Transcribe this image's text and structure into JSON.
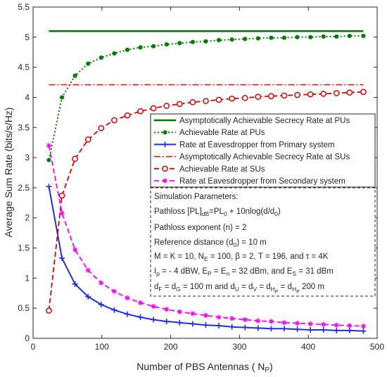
{
  "chart_data": {
    "type": "line",
    "xlabel": "Number of PBS Antennas ( N",
    "xlabel_sub": "P",
    "xlabel_end": ")",
    "ylabel": "Average Sum Rate (bits/s/Hz)",
    "xlim": [
      0,
      500
    ],
    "ylim": [
      0,
      5.5
    ],
    "xticks": [
      0,
      100,
      200,
      300,
      400,
      500
    ],
    "yticks": [
      0,
      0.5,
      1,
      1.5,
      2,
      2.5,
      3,
      3.5,
      4,
      4.5,
      5,
      5.5
    ],
    "x": [
      23,
      42,
      61,
      80,
      99,
      118,
      137,
      156,
      175,
      194,
      213,
      232,
      251,
      270,
      289,
      308,
      327,
      346,
      365,
      384,
      403,
      422,
      441,
      460,
      480
    ],
    "legend_position": "right",
    "series": [
      {
        "name": "Asymptotically Achievable Secrecy Rate at PUs",
        "color": "#007500",
        "dash": "solid",
        "marker": "none",
        "width": 2.5,
        "values": [
          5.1,
          5.1,
          5.1,
          5.1,
          5.1,
          5.1,
          5.1,
          5.1,
          5.1,
          5.1,
          5.1,
          5.1,
          5.1,
          5.1,
          5.1,
          5.1,
          5.1,
          5.1,
          5.1,
          5.1,
          5.1,
          5.1,
          5.1,
          5.1,
          5.1
        ]
      },
      {
        "name": "Achievable Rate at PUs",
        "color": "#008000",
        "dash": "dotted",
        "marker": "dot",
        "width": 2,
        "values": [
          2.96,
          4.0,
          4.36,
          4.56,
          4.66,
          4.73,
          4.79,
          4.83,
          4.85,
          4.88,
          4.9,
          4.92,
          4.93,
          4.95,
          4.96,
          4.97,
          4.98,
          4.99,
          4.99,
          5.0,
          5.0,
          5.01,
          5.01,
          5.02,
          5.02
        ]
      },
      {
        "name": "Rate at Eavesdropper from Primary system",
        "color": "#1b2ff0",
        "dash": "solid",
        "marker": "plus",
        "width": 2,
        "values": [
          2.52,
          1.33,
          0.9,
          0.69,
          0.56,
          0.47,
          0.4,
          0.35,
          0.31,
          0.28,
          0.26,
          0.24,
          0.22,
          0.21,
          0.19,
          0.18,
          0.17,
          0.16,
          0.16,
          0.15,
          0.14,
          0.14,
          0.13,
          0.13,
          0.12
        ]
      },
      {
        "name": "Asymptotically Achievable Secrecy Rate at SUs",
        "color": "#ff0000",
        "dash": "dashdot",
        "marker": "none",
        "width": 1.5,
        "values": [
          4.21,
          4.21,
          4.21,
          4.21,
          4.21,
          4.21,
          4.21,
          4.21,
          4.21,
          4.21,
          4.21,
          4.21,
          4.21,
          4.21,
          4.21,
          4.21,
          4.21,
          4.21,
          4.21,
          4.21,
          4.21,
          4.21,
          4.21,
          4.21,
          4.21
        ]
      },
      {
        "name": "Achievable Rate at SUs",
        "color": "#e30000",
        "dash": "dashed",
        "marker": "circle",
        "width": 1.8,
        "values": [
          0.46,
          2.37,
          2.98,
          3.3,
          3.49,
          3.62,
          3.7,
          3.77,
          3.82,
          3.86,
          3.89,
          3.92,
          3.94,
          3.96,
          3.98,
          3.99,
          4.01,
          4.02,
          4.03,
          4.04,
          4.05,
          4.06,
          4.07,
          4.08,
          4.09
        ]
      },
      {
        "name": "Rate at Eavesdropper from Secondary system",
        "color": "#ff00ff",
        "dash": "dashed",
        "marker": "star",
        "width": 1.8,
        "values": [
          3.2,
          2.08,
          1.47,
          1.13,
          0.92,
          0.78,
          0.67,
          0.59,
          0.53,
          0.48,
          0.44,
          0.41,
          0.38,
          0.35,
          0.33,
          0.31,
          0.29,
          0.28,
          0.26,
          0.25,
          0.24,
          0.23,
          0.22,
          0.21,
          0.2
        ]
      }
    ],
    "annotation_title": "Simulation Parameters:",
    "annotation_lines": [
      [
        {
          "t": "Pathloss [PL]"
        },
        {
          "t": "dB",
          "sub": true
        },
        {
          "t": "=PL"
        },
        {
          "t": "0",
          "sub": true
        },
        {
          "t": " + 10nlog(d/d"
        },
        {
          "t": "0",
          "sub": true
        },
        {
          "t": ")"
        }
      ],
      [
        {
          "t": "Pathloss exponent (n) = 2"
        }
      ],
      [
        {
          "t": "Reference distance (d"
        },
        {
          "t": "0",
          "sub": true
        },
        {
          "t": ") = 10 m"
        }
      ],
      [
        {
          "t": "M = K = 10,  N"
        },
        {
          "t": "E",
          "sub": true
        },
        {
          "t": " = 100, β = 2,  T = 196, and τ = 4K"
        }
      ],
      [
        {
          "t": "I"
        },
        {
          "t": "p",
          "sub": true
        },
        {
          "t": " = - 4 dBW,  E"
        },
        {
          "t": "P",
          "sub": true
        },
        {
          "t": " = E"
        },
        {
          "t": "n",
          "sub": true
        },
        {
          "t": " = 32 dBm, and E"
        },
        {
          "t": "S",
          "sub": true
        },
        {
          "t": " = 31 dBm"
        }
      ],
      [
        {
          "t": "d"
        },
        {
          "t": "F",
          "sub": true
        },
        {
          "t": " = d"
        },
        {
          "t": "G",
          "sub": true
        },
        {
          "t": " = 100 m  and d"
        },
        {
          "t": "U",
          "sub": true
        },
        {
          "t": " = d"
        },
        {
          "t": "V",
          "sub": true
        },
        {
          "t": " = d"
        },
        {
          "t": "H",
          "sub": true
        },
        {
          "t": "P",
          "subsub": true
        },
        {
          "t": " = d"
        },
        {
          "t": "H",
          "sub": true
        },
        {
          "t": "P",
          "subsub": true
        },
        {
          "t": "  200 m"
        }
      ]
    ]
  }
}
